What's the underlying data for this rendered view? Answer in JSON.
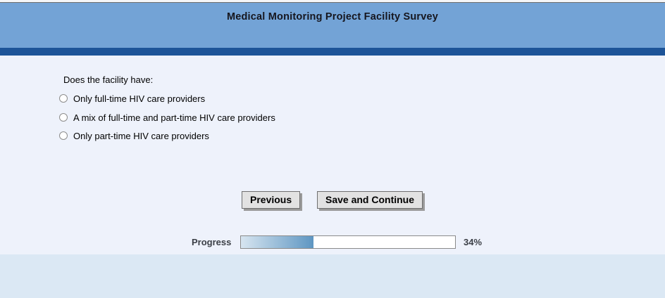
{
  "header": {
    "title": "Medical Monitoring Project Facility Survey"
  },
  "question": {
    "prompt": "Does the facility have:",
    "options": [
      {
        "label": "Only full-time HIV care providers",
        "selected": false
      },
      {
        "label": "A mix of full-time and part-time HIV care providers",
        "selected": false
      },
      {
        "label": "Only part-time HIV care providers",
        "selected": false
      }
    ]
  },
  "buttons": {
    "previous": "Previous",
    "save_continue": "Save and Continue"
  },
  "progress": {
    "label": "Progress",
    "percent": 34,
    "value_text": "34%"
  },
  "colors": {
    "header_blue": "#73a3d6",
    "dark_blue": "#1d5498",
    "main_bg": "#eef2fb",
    "footer_bg": "#dbe8f4",
    "progress_fill_start": "#d7e5f0",
    "progress_fill_end": "#5e96c2"
  }
}
